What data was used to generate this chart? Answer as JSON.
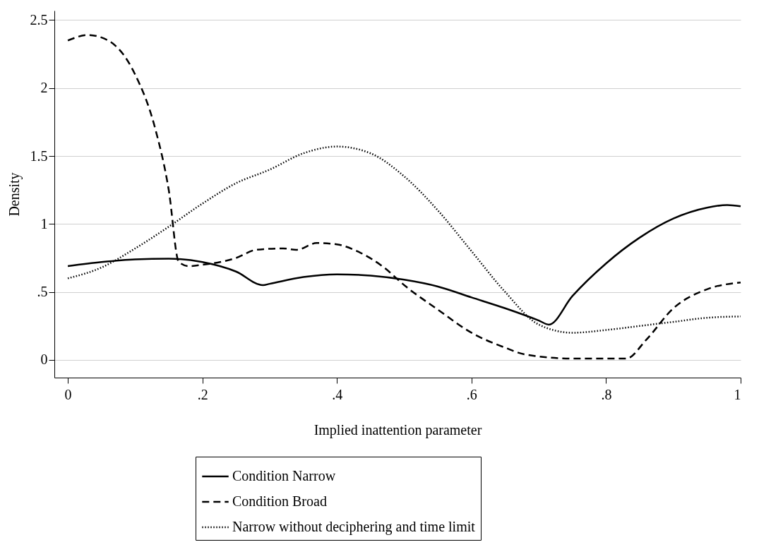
{
  "chart_data": {
    "type": "line",
    "xlabel": "Implied inattention parameter",
    "ylabel": "Density",
    "xlim": [
      -0.02,
      1
    ],
    "ylim": [
      -0.13,
      2.57
    ],
    "xticks": [
      0,
      {
        "value": 0.2,
        "label": ".2"
      },
      {
        "value": 0.4,
        "label": ".4"
      },
      {
        "value": 0.6,
        "label": ".6"
      },
      {
        "value": 0.8,
        "label": ".8"
      },
      1
    ],
    "yticks": [
      0,
      {
        "value": 0.5,
        "label": ".5"
      },
      1,
      1.5,
      2,
      2.5
    ],
    "grid": "y",
    "legend": "bottom",
    "marker": "none",
    "series": [
      {
        "name": "Condition Narrow",
        "color": "#000000",
        "line_style": "solid",
        "x": [
          0,
          0.05,
          0.1,
          0.15,
          0.2,
          0.25,
          0.29,
          0.3,
          0.35,
          0.4,
          0.45,
          0.5,
          0.55,
          0.6,
          0.65,
          0.7,
          0.715,
          0.75,
          0.8,
          0.85,
          0.9,
          0.95,
          0.98,
          1
        ],
        "values": [
          0.69,
          0.72,
          0.74,
          0.745,
          0.72,
          0.65,
          0.55,
          0.56,
          0.61,
          0.63,
          0.62,
          0.59,
          0.54,
          0.46,
          0.38,
          0.29,
          0.26,
          0.47,
          0.71,
          0.9,
          1.04,
          1.12,
          1.14,
          1.13
        ]
      },
      {
        "name": "Condition Broad",
        "color": "#000000",
        "line_style": "dashed",
        "x": [
          0,
          0.03,
          0.06,
          0.1,
          0.13,
          0.15,
          0.165,
          0.18,
          0.2,
          0.25,
          0.28,
          0.32,
          0.34,
          0.37,
          0.4,
          0.43,
          0.47,
          0.5,
          0.55,
          0.6,
          0.65,
          0.68,
          0.75,
          0.8,
          0.83,
          0.86,
          0.9,
          0.95,
          1
        ],
        "values": [
          2.35,
          2.39,
          2.35,
          2.1,
          1.7,
          1.25,
          0.72,
          0.69,
          0.7,
          0.75,
          0.81,
          0.82,
          0.81,
          0.86,
          0.85,
          0.8,
          0.68,
          0.55,
          0.37,
          0.2,
          0.09,
          0.04,
          0.01,
          0.01,
          0.01,
          0.15,
          0.38,
          0.52,
          0.57
        ]
      },
      {
        "name": "Narrow without deciphering and time limit",
        "color": "#000000",
        "line_style": "dotted",
        "x": [
          0,
          0.05,
          0.1,
          0.15,
          0.2,
          0.25,
          0.3,
          0.35,
          0.4,
          0.45,
          0.5,
          0.55,
          0.6,
          0.65,
          0.7,
          0.75,
          0.8,
          0.85,
          0.9,
          0.95,
          1
        ],
        "values": [
          0.6,
          0.68,
          0.82,
          0.98,
          1.15,
          1.3,
          1.4,
          1.52,
          1.57,
          1.52,
          1.35,
          1.1,
          0.8,
          0.5,
          0.26,
          0.2,
          0.22,
          0.25,
          0.28,
          0.31,
          0.32
        ]
      }
    ]
  }
}
